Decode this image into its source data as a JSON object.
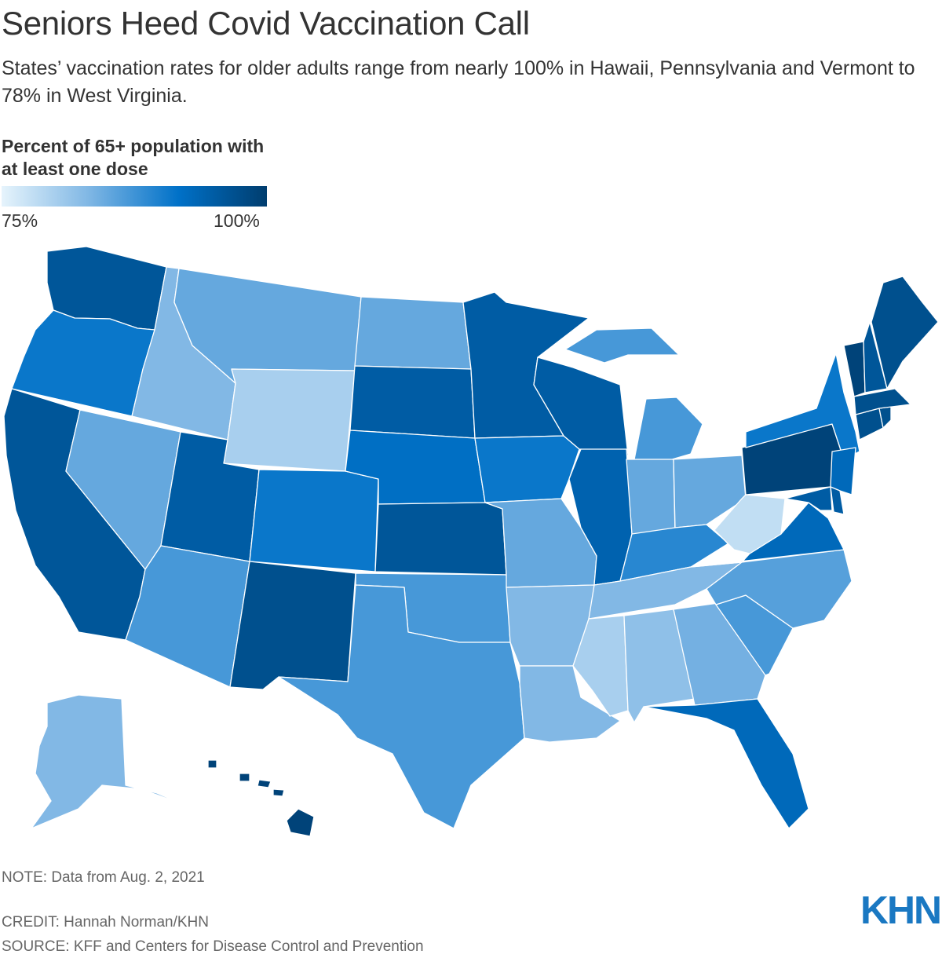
{
  "header": {
    "title": "Seniors Heed Covid Vaccination Call",
    "subtitle": "States’ vaccination rates for older adults range from nearly 100% in Hawaii, Pennsylvania and Vermont to 78% in West Virginia."
  },
  "legend": {
    "title": "Percent of 65+ population with at least one dose",
    "min_label": "75%",
    "max_label": "100%",
    "min_value": 75,
    "max_value": 100,
    "gradient_colors": [
      "#e6f4fc",
      "#7eb6e4",
      "#0071c8",
      "#003d6e"
    ]
  },
  "map_data": {
    "type": "choropleth",
    "region": "United States",
    "unit": "Percent of 65+ population with at least one dose",
    "approximate_values": {
      "WA": 96,
      "OR": 91,
      "CA": 96,
      "NV": 85,
      "ID": 83,
      "MT": 85,
      "WY": 80,
      "UT": 95,
      "AZ": 87,
      "CO": 91,
      "NM": 97,
      "ND": 85,
      "SD": 95,
      "NE": 92,
      "KS": 96,
      "OK": 87,
      "TX": 87,
      "MN": 95,
      "IA": 91,
      "MO": 85,
      "AR": 83,
      "LA": 83,
      "WI": 95,
      "IL": 94,
      "MI": 87,
      "IN": 85,
      "OH": 85,
      "KY": 89,
      "TN": 83,
      "MS": 80,
      "AL": 82,
      "GA": 84,
      "FL": 93,
      "SC": 87,
      "NC": 86,
      "VA": 93,
      "WV": 78,
      "PA": 99,
      "NY": 91,
      "NJ": 93,
      "MD": 95,
      "DE": 95,
      "CT": 97,
      "RI": 97,
      "MA": 97,
      "VT": 99,
      "NH": 96,
      "ME": 97,
      "AK": 83,
      "HI": 99
    }
  },
  "footer": {
    "note": "NOTE: Data from Aug. 2, 2021",
    "credit": "CREDIT: Hannah Norman/KHN",
    "source": "SOURCE: KFF and Centers for Disease Control and Prevention",
    "logo_text": "KHN",
    "logo_color": "#1a78c2"
  }
}
